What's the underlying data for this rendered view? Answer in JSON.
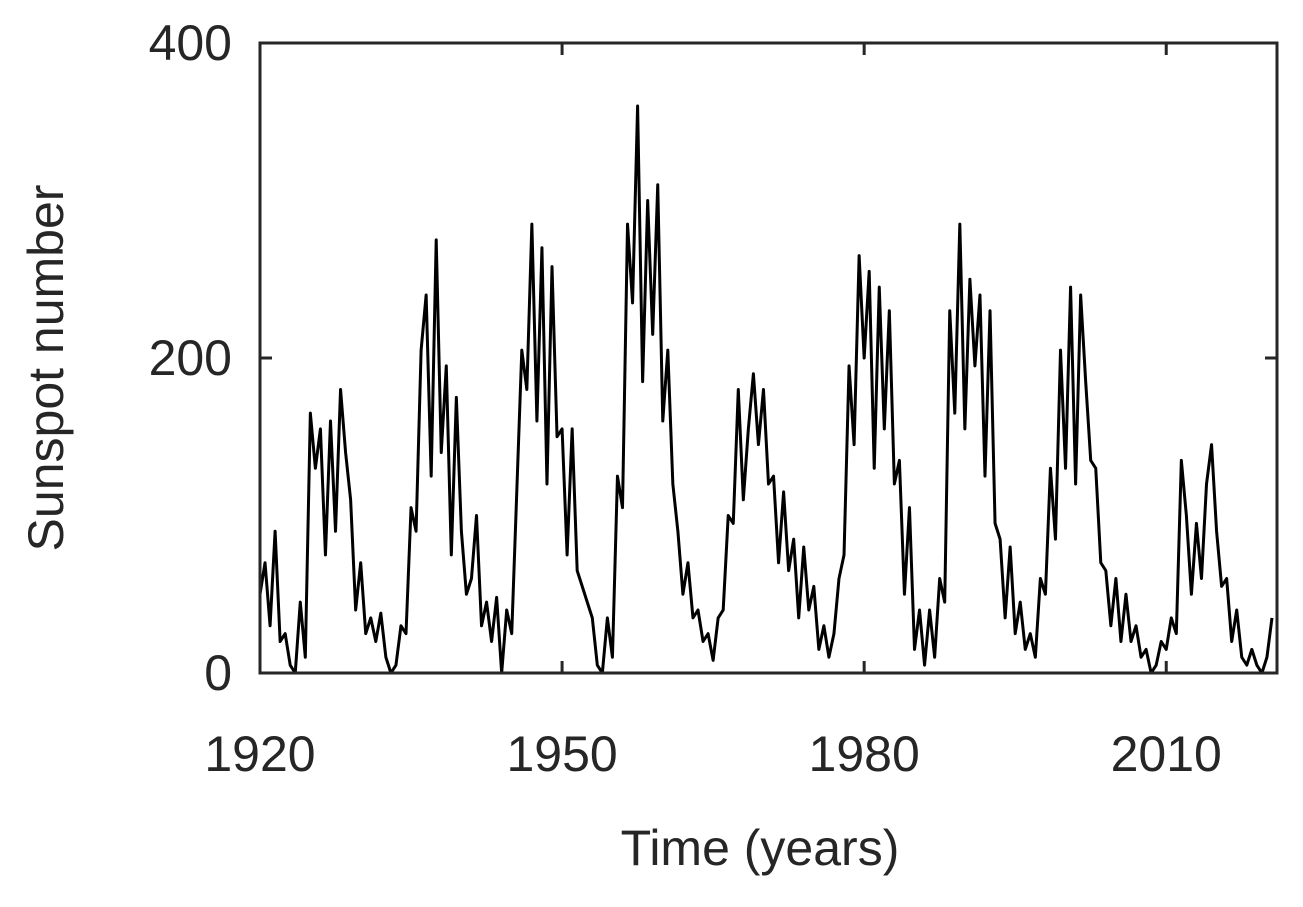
{
  "chart_data": {
    "type": "line",
    "xlabel": "Time (years)",
    "ylabel": "Sunspot number",
    "xlim": [
      1920,
      2021
    ],
    "xticks": [
      1920,
      1950,
      1980,
      2010
    ],
    "ylim": [
      0,
      400
    ],
    "yticks": [
      0,
      200,
      400
    ],
    "x": [
      1920,
      1920.5,
      1921,
      1921.5,
      1922,
      1922.5,
      1923,
      1923.5,
      1924,
      1924.5,
      1925,
      1925.5,
      1926,
      1926.5,
      1927,
      1927.5,
      1928,
      1928.5,
      1929,
      1929.5,
      1930,
      1930.5,
      1931,
      1931.5,
      1932,
      1932.5,
      1933,
      1933.5,
      1934,
      1934.5,
      1935,
      1935.5,
      1936,
      1936.5,
      1937,
      1937.5,
      1938,
      1938.5,
      1939,
      1939.5,
      1940,
      1940.5,
      1941,
      1941.5,
      1942,
      1942.5,
      1943,
      1943.5,
      1944,
      1944.5,
      1945,
      1945.5,
      1946,
      1946.5,
      1947,
      1947.5,
      1948,
      1948.5,
      1949,
      1949.5,
      1950,
      1950.5,
      1951,
      1951.5,
      1952,
      1952.5,
      1953,
      1953.5,
      1954,
      1954.5,
      1955,
      1955.5,
      1956,
      1956.5,
      1957,
      1957.5,
      1958,
      1958.5,
      1959,
      1959.5,
      1960,
      1960.5,
      1961,
      1961.5,
      1962,
      1962.5,
      1963,
      1963.5,
      1964,
      1964.5,
      1965,
      1965.5,
      1966,
      1966.5,
      1967,
      1967.5,
      1968,
      1968.5,
      1969,
      1969.5,
      1970,
      1970.5,
      1971,
      1971.5,
      1972,
      1972.5,
      1973,
      1973.5,
      1974,
      1974.5,
      1975,
      1975.5,
      1976,
      1976.5,
      1977,
      1977.5,
      1978,
      1978.5,
      1979,
      1979.5,
      1980,
      1980.5,
      1981,
      1981.5,
      1982,
      1982.5,
      1983,
      1983.5,
      1984,
      1984.5,
      1985,
      1985.5,
      1986,
      1986.5,
      1987,
      1987.5,
      1988,
      1988.5,
      1989,
      1989.5,
      1990,
      1990.5,
      1991,
      1991.5,
      1992,
      1992.5,
      1993,
      1993.5,
      1994,
      1994.5,
      1995,
      1995.5,
      1996,
      1996.5,
      1997,
      1997.5,
      1998,
      1998.5,
      1999,
      1999.5,
      2000,
      2000.5,
      2001,
      2001.5,
      2002,
      2002.5,
      2003,
      2003.5,
      2004,
      2004.5,
      2005,
      2005.5,
      2006,
      2006.5,
      2007,
      2007.5,
      2008,
      2008.5,
      2009,
      2009.5,
      2010,
      2010.5,
      2011,
      2011.5,
      2012,
      2012.5,
      2013,
      2013.5,
      2014,
      2014.5,
      2015,
      2015.5,
      2016,
      2016.5,
      2017,
      2017.5,
      2018,
      2018.5,
      2019,
      2019.5,
      2020,
      2020.5
    ],
    "series": [
      {
        "color": "#000000",
        "values": [
          50,
          70,
          30,
          90,
          20,
          25,
          5,
          0,
          45,
          10,
          165,
          130,
          155,
          75,
          160,
          90,
          180,
          140,
          110,
          40,
          70,
          25,
          35,
          20,
          38,
          10,
          0,
          5,
          30,
          25,
          105,
          90,
          205,
          240,
          125,
          275,
          140,
          195,
          75,
          175,
          90,
          50,
          60,
          100,
          30,
          45,
          20,
          48,
          0,
          40,
          25,
          115,
          205,
          180,
          285,
          160,
          270,
          120,
          258,
          150,
          155,
          75,
          155,
          65,
          55,
          45,
          35,
          5,
          0,
          35,
          10,
          125,
          105,
          285,
          235,
          360,
          185,
          300,
          215,
          310,
          160,
          205,
          120,
          90,
          50,
          70,
          35,
          40,
          20,
          25,
          8,
          35,
          40,
          100,
          95,
          180,
          110,
          155,
          190,
          145,
          180,
          120,
          125,
          70,
          115,
          65,
          85,
          35,
          80,
          40,
          55,
          15,
          30,
          10,
          25,
          60,
          75,
          195,
          145,
          265,
          200,
          255,
          130,
          245,
          155,
          230,
          120,
          135,
          50,
          105,
          15,
          40,
          5,
          40,
          10,
          60,
          45,
          230,
          165,
          285,
          155,
          250,
          195,
          240,
          125,
          230,
          95,
          85,
          35,
          80,
          25,
          45,
          15,
          25,
          10,
          60,
          50,
          130,
          85,
          205,
          130,
          245,
          120,
          240,
          185,
          135,
          130,
          70,
          65,
          30,
          60,
          20,
          50,
          20,
          30,
          10,
          15,
          0,
          5,
          20,
          15,
          35,
          25,
          135,
          100,
          50,
          95,
          60,
          120,
          145,
          90,
          55,
          60,
          20,
          40,
          10,
          5,
          15,
          5,
          0,
          10,
          35
        ]
      }
    ]
  }
}
